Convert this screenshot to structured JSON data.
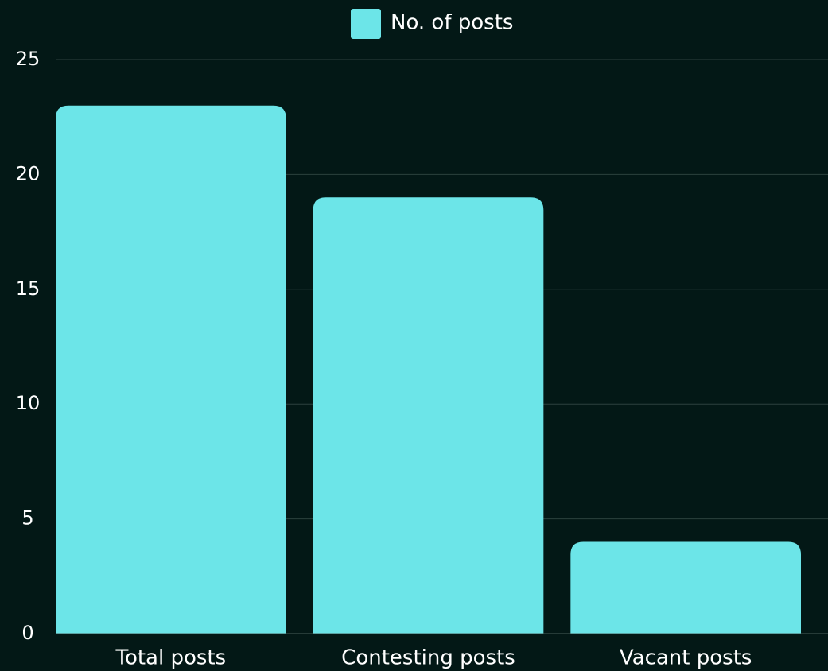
{
  "chart_data": {
    "type": "bar",
    "legend": "No. of posts",
    "categories": [
      "Total posts",
      "Contesting posts",
      "Vacant posts"
    ],
    "values": [
      23,
      19,
      4
    ],
    "color": "#6ce5e8",
    "ylim": [
      0,
      25
    ],
    "yticks": [
      0,
      5,
      10,
      15,
      20,
      25
    ],
    "grid": true,
    "legend_position": "top"
  }
}
